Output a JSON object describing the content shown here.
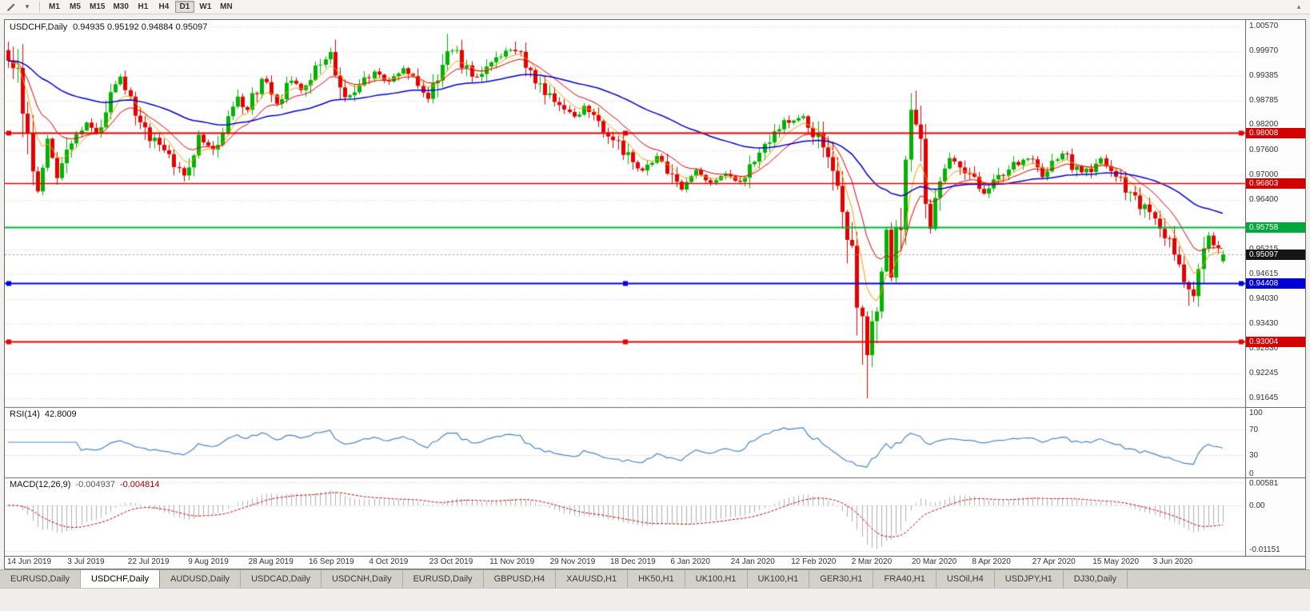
{
  "toolbar": {
    "caret_glyph": "▾",
    "scroll_glyph": "▴",
    "timeframes": [
      {
        "label": "M1",
        "active": false
      },
      {
        "label": "M5",
        "active": false
      },
      {
        "label": "M15",
        "active": false
      },
      {
        "label": "M30",
        "active": false
      },
      {
        "label": "H1",
        "active": false
      },
      {
        "label": "H4",
        "active": false
      },
      {
        "label": "D1",
        "active": true
      },
      {
        "label": "W1",
        "active": false
      },
      {
        "label": "MN",
        "active": false
      }
    ]
  },
  "chart": {
    "symbol": "USDCHF,Daily",
    "ohlc": "0.94935 0.95192 0.94884 0.95097"
  },
  "indicators": {
    "rsi_name": "RSI(14)",
    "rsi_value": "42.8009",
    "macd_name": "MACD(12,26,9)",
    "macd_main": "-0.004937",
    "macd_signal": "-0.004814"
  },
  "price_axis": {
    "ticks": [
      "1.00570",
      "0.99970",
      "0.99385",
      "0.98785",
      "0.98200",
      "0.97600",
      "0.97000",
      "0.96400",
      "0.95215",
      "0.94615",
      "0.94030",
      "0.93430",
      "0.92830",
      "0.92245",
      "0.91645"
    ],
    "badges": [
      {
        "text": "0.98008",
        "bg": "#d40000"
      },
      {
        "text": "0.96803",
        "bg": "#d40000"
      },
      {
        "text": "0.95758",
        "bg": "#00a83c"
      },
      {
        "text": "0.95097",
        "bg": "#151515"
      },
      {
        "text": "0.94408",
        "bg": "#0000d4"
      },
      {
        "text": "0.93004",
        "bg": "#d40000"
      }
    ]
  },
  "rsi_axis": {
    "labels": [
      {
        "text": "100",
        "value": 100
      },
      {
        "text": "70",
        "value": 70
      },
      {
        "text": "30",
        "value": 30
      },
      {
        "text": "0",
        "value": 0
      }
    ]
  },
  "macd_axis": {
    "labels": [
      {
        "text": "0.00581",
        "value": 0.00581
      },
      {
        "text": "0.00",
        "value": 0
      },
      {
        "text": "-0.01151",
        "value": -0.01151
      }
    ]
  },
  "time_axis": {
    "labels": [
      "14 Jun 2019",
      "3 Jul 2019",
      "22 Jul 2019",
      "9 Aug 2019",
      "28 Aug 2019",
      "16 Sep 2019",
      "4 Oct 2019",
      "23 Oct 2019",
      "11 Nov 2019",
      "29 Nov 2019",
      "18 Dec 2019",
      "6 Jan 2020",
      "24 Jan 2020",
      "12 Feb 2020",
      "2 Mar 2020",
      "20 Mar 2020",
      "8 Apr 2020",
      "27 Apr 2020",
      "15 May 2020",
      "3 Jun 2020"
    ]
  },
  "tabs": {
    "active_index": 1,
    "items": [
      "EURUSD,Daily",
      "USDCHF,Daily",
      "AUDUSD,Daily",
      "USDCAD,Daily",
      "USDCNH,Daily",
      "EURUSD,Daily",
      "GBPUSD,H4",
      "XAUUSD,H1",
      "HK50,H1",
      "UK100,H1",
      "UK100,H1",
      "GER30,H1",
      "FRA40,H1",
      "USOil,H4",
      "USDJPY,H1",
      "DJ30,Daily"
    ],
    "active_item": "USDCHF,Daily"
  },
  "chart_data": {
    "type": "candlestick",
    "symbol": "USDCHF",
    "timeframe": "Daily",
    "current_ohlc": {
      "open": 0.94935,
      "high": 0.95192,
      "low": 0.94884,
      "close": 0.95097
    },
    "y_axis": {
      "top": 1.0057,
      "bottom": 0.91645
    },
    "candle_count": 250,
    "up_color": "#00b300",
    "down_color": "#e60000",
    "close_waypoints": [
      [
        0,
        0.9988
      ],
      [
        1,
        0.996
      ],
      [
        3,
        0.9875
      ],
      [
        5,
        0.972
      ],
      [
        6,
        0.9668
      ],
      [
        8,
        0.978
      ],
      [
        10,
        0.9695
      ],
      [
        13,
        0.9768
      ],
      [
        16,
        0.983
      ],
      [
        18,
        0.9798
      ],
      [
        21,
        0.988
      ],
      [
        23,
        0.9932
      ],
      [
        26,
        0.986
      ],
      [
        29,
        0.979
      ],
      [
        31,
        0.9762
      ],
      [
        33,
        0.9748
      ],
      [
        36,
        0.97
      ],
      [
        39,
        0.979
      ],
      [
        42,
        0.9755
      ],
      [
        45,
        0.982
      ],
      [
        47,
        0.988
      ],
      [
        49,
        0.9858
      ],
      [
        52,
        0.9935
      ],
      [
        55,
        0.9872
      ],
      [
        58,
        0.9928
      ],
      [
        60,
        0.9902
      ],
      [
        63,
        0.9952
      ],
      [
        66,
        0.9988
      ],
      [
        69,
        0.9882
      ],
      [
        72,
        0.9908
      ],
      [
        75,
        0.995
      ],
      [
        78,
        0.9922
      ],
      [
        81,
        0.9962
      ],
      [
        84,
        0.9912
      ],
      [
        86,
        0.9892
      ],
      [
        88,
        0.9942
      ],
      [
        90,
        1.0002
      ],
      [
        92,
        0.9992
      ],
      [
        95,
        0.9932
      ],
      [
        98,
        0.9962
      ],
      [
        101,
        0.9992
      ],
      [
        104,
        1.0006
      ],
      [
        107,
        0.9956
      ],
      [
        110,
        0.9892
      ],
      [
        113,
        0.9866
      ],
      [
        116,
        0.9836
      ],
      [
        118,
        0.9862
      ],
      [
        121,
        0.9818
      ],
      [
        124,
        0.9792
      ],
      [
        127,
        0.9742
      ],
      [
        130,
        0.9712
      ],
      [
        133,
        0.9742
      ],
      [
        135,
        0.9718
      ],
      [
        138,
        0.9666
      ],
      [
        141,
        0.9708
      ],
      [
        144,
        0.9682
      ],
      [
        147,
        0.9702
      ],
      [
        150,
        0.9686
      ],
      [
        153,
        0.9742
      ],
      [
        156,
        0.9786
      ],
      [
        159,
        0.9826
      ],
      [
        163,
        0.9848
      ],
      [
        165,
        0.9802
      ],
      [
        167,
        0.9762
      ],
      [
        169,
        0.9702
      ],
      [
        171,
        0.96
      ],
      [
        173,
        0.948
      ],
      [
        175,
        0.933
      ],
      [
        176,
        0.927
      ],
      [
        177,
        0.932
      ],
      [
        178,
        0.942
      ],
      [
        180,
        0.9552
      ],
      [
        181,
        0.9472
      ],
      [
        183,
        0.9622
      ],
      [
        184,
        0.9732
      ],
      [
        185,
        0.9862
      ],
      [
        187,
        0.9802
      ],
      [
        188,
        0.9652
      ],
      [
        189,
        0.9582
      ],
      [
        191,
        0.9682
      ],
      [
        193,
        0.9742
      ],
      [
        195,
        0.9722
      ],
      [
        197,
        0.9702
      ],
      [
        199,
        0.9668
      ],
      [
        200,
        0.9652
      ],
      [
        202,
        0.9692
      ],
      [
        205,
        0.9716
      ],
      [
        208,
        0.9736
      ],
      [
        210,
        0.9746
      ],
      [
        212,
        0.9702
      ],
      [
        214,
        0.9732
      ],
      [
        216,
        0.9756
      ],
      [
        218,
        0.9726
      ],
      [
        220,
        0.9706
      ],
      [
        222,
        0.9716
      ],
      [
        224,
        0.9736
      ],
      [
        226,
        0.9712
      ],
      [
        228,
        0.9682
      ],
      [
        230,
        0.9652
      ],
      [
        232,
        0.9626
      ],
      [
        234,
        0.9606
      ],
      [
        236,
        0.9572
      ],
      [
        238,
        0.9532
      ],
      [
        240,
        0.9492
      ],
      [
        242,
        0.9432
      ],
      [
        243,
        0.9402
      ],
      [
        244,
        0.9472
      ],
      [
        246,
        0.9542
      ],
      [
        248,
        0.9522
      ],
      [
        249,
        0.95097
      ]
    ],
    "wick_spikes": [
      {
        "i": 6,
        "low": 0.9659
      },
      {
        "i": 66,
        "high": 1.0006
      },
      {
        "i": 90,
        "high": 1.0039
      },
      {
        "i": 104,
        "high": 1.0021
      },
      {
        "i": 138,
        "low": 0.9661
      },
      {
        "i": 175,
        "low": 0.9245
      },
      {
        "i": 176,
        "low": 0.91645
      },
      {
        "i": 186,
        "high": 0.9903
      },
      {
        "i": 189,
        "low": 0.956
      },
      {
        "i": 242,
        "low": 0.9386
      }
    ],
    "horizontal_lines": [
      {
        "price": 0.98008,
        "color": "#e80000",
        "width": 2,
        "selected": true
      },
      {
        "price": 0.96803,
        "color": "#e80000",
        "width": 1.5,
        "selected": false
      },
      {
        "price": 0.95758,
        "color": "#00b43c",
        "width": 2,
        "selected": false
      },
      {
        "price": 0.94408,
        "color": "#0000e0",
        "width": 2,
        "selected": true
      },
      {
        "price": 0.93004,
        "color": "#e80000",
        "width": 2,
        "selected": true
      }
    ],
    "current_price_line": {
      "price": 0.95097,
      "color": "#9a9a9a"
    },
    "moving_averages": [
      {
        "period": 6,
        "color": "#f2a100",
        "width": 1
      },
      {
        "period": 13,
        "color": "#e00000",
        "width": 1
      },
      {
        "period": 50,
        "color": "#0000cc",
        "width": 1.5
      }
    ],
    "rsi": {
      "period": 14,
      "current": 42.8009,
      "color": "#4a86c8",
      "grid_levels": [
        70,
        30
      ],
      "range": [
        0,
        100
      ]
    },
    "macd": {
      "fast": 12,
      "slow": 26,
      "signal_period": 9,
      "main_current": -0.004937,
      "signal_current": -0.004814,
      "histogram_color": "#b0b0b0",
      "signal_color": "#cc0000",
      "scale_max": 0.00581,
      "scale_min": -0.01151
    }
  }
}
